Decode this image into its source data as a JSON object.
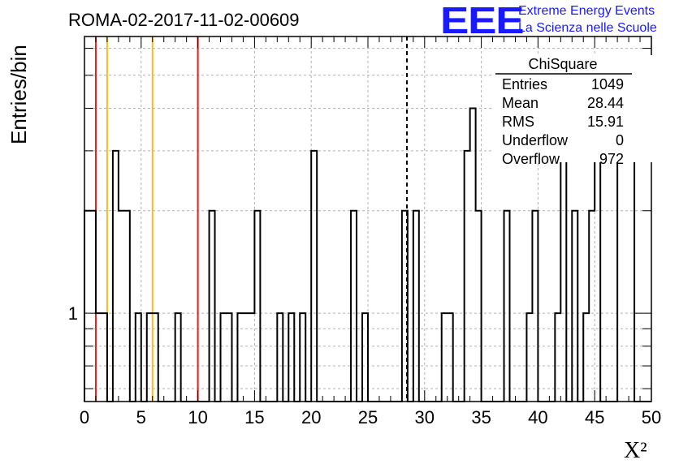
{
  "title": "ROMA-02-2017-11-02-00609",
  "logo": {
    "text": "EEE",
    "line1": "Extreme Energy Events",
    "line2": "La Scienza nelle Scuole",
    "color": "#1a1aff"
  },
  "stats_box": {
    "title": "ChiSquare",
    "rows": [
      {
        "label": "Entries",
        "value": "1049"
      },
      {
        "label": "Mean",
        "value": "28.44"
      },
      {
        "label": "RMS",
        "value": "15.91"
      },
      {
        "label": "Underflow",
        "value": "0"
      },
      {
        "label": "Overflow",
        "value": "972"
      }
    ]
  },
  "chart_data": {
    "type": "bar",
    "title": "ROMA-02-2017-11-02-00609",
    "xlabel": "X²",
    "ylabel": "Entries/bin",
    "xlim": [
      0,
      50
    ],
    "ylim": [
      0.55,
      6.5
    ],
    "yscale": "log",
    "xticks": [
      0,
      5,
      10,
      15,
      20,
      25,
      30,
      35,
      40,
      45,
      50
    ],
    "yticks": [
      1
    ],
    "grid": true,
    "bin_width": 0.5,
    "bins": [
      {
        "x": 0.0,
        "y": 2
      },
      {
        "x": 0.5,
        "y": 2
      },
      {
        "x": 1.0,
        "y": 1
      },
      {
        "x": 1.5,
        "y": 1
      },
      {
        "x": 2.0,
        "y": 0
      },
      {
        "x": 2.5,
        "y": 3
      },
      {
        "x": 3.0,
        "y": 2
      },
      {
        "x": 3.5,
        "y": 2
      },
      {
        "x": 4.0,
        "y": 0
      },
      {
        "x": 4.5,
        "y": 1
      },
      {
        "x": 5.0,
        "y": 0
      },
      {
        "x": 5.5,
        "y": 1
      },
      {
        "x": 6.0,
        "y": 1
      },
      {
        "x": 6.5,
        "y": 0
      },
      {
        "x": 7.0,
        "y": 0
      },
      {
        "x": 7.5,
        "y": 0
      },
      {
        "x": 8.0,
        "y": 1
      },
      {
        "x": 8.5,
        "y": 0
      },
      {
        "x": 9.0,
        "y": 0
      },
      {
        "x": 9.5,
        "y": 0
      },
      {
        "x": 10.0,
        "y": 0
      },
      {
        "x": 10.5,
        "y": 0
      },
      {
        "x": 11.0,
        "y": 2
      },
      {
        "x": 11.5,
        "y": 0
      },
      {
        "x": 12.0,
        "y": 1
      },
      {
        "x": 12.5,
        "y": 1
      },
      {
        "x": 13.0,
        "y": 0
      },
      {
        "x": 13.5,
        "y": 1
      },
      {
        "x": 14.0,
        "y": 1
      },
      {
        "x": 14.5,
        "y": 1
      },
      {
        "x": 15.0,
        "y": 2
      },
      {
        "x": 15.5,
        "y": 0
      },
      {
        "x": 16.0,
        "y": 0
      },
      {
        "x": 16.5,
        "y": 0
      },
      {
        "x": 17.0,
        "y": 1
      },
      {
        "x": 17.5,
        "y": 0
      },
      {
        "x": 18.0,
        "y": 1
      },
      {
        "x": 18.5,
        "y": 0
      },
      {
        "x": 19.0,
        "y": 1
      },
      {
        "x": 19.5,
        "y": 0
      },
      {
        "x": 20.0,
        "y": 3
      },
      {
        "x": 20.5,
        "y": 0
      },
      {
        "x": 21.0,
        "y": 0
      },
      {
        "x": 21.5,
        "y": 0
      },
      {
        "x": 22.0,
        "y": 0
      },
      {
        "x": 22.5,
        "y": 0
      },
      {
        "x": 23.0,
        "y": 0
      },
      {
        "x": 23.5,
        "y": 2
      },
      {
        "x": 24.0,
        "y": 0
      },
      {
        "x": 24.5,
        "y": 1
      },
      {
        "x": 25.0,
        "y": 0
      },
      {
        "x": 25.5,
        "y": 0
      },
      {
        "x": 26.0,
        "y": 0
      },
      {
        "x": 26.5,
        "y": 0
      },
      {
        "x": 27.0,
        "y": 0
      },
      {
        "x": 27.5,
        "y": 0
      },
      {
        "x": 28.0,
        "y": 2
      },
      {
        "x": 28.5,
        "y": 0
      },
      {
        "x": 29.0,
        "y": 2
      },
      {
        "x": 29.5,
        "y": 0
      },
      {
        "x": 30.0,
        "y": 0
      },
      {
        "x": 30.5,
        "y": 0
      },
      {
        "x": 31.0,
        "y": 0
      },
      {
        "x": 31.5,
        "y": 1
      },
      {
        "x": 32.0,
        "y": 1
      },
      {
        "x": 32.5,
        "y": 0
      },
      {
        "x": 33.0,
        "y": 0
      },
      {
        "x": 33.5,
        "y": 3
      },
      {
        "x": 34.0,
        "y": 4
      },
      {
        "x": 34.5,
        "y": 2
      },
      {
        "x": 35.0,
        "y": 0
      },
      {
        "x": 35.5,
        "y": 0
      },
      {
        "x": 36.0,
        "y": 0
      },
      {
        "x": 36.5,
        "y": 0
      },
      {
        "x": 37.0,
        "y": 2
      },
      {
        "x": 37.5,
        "y": 0
      },
      {
        "x": 38.0,
        "y": 0
      },
      {
        "x": 38.5,
        "y": 0
      },
      {
        "x": 39.0,
        "y": 1
      },
      {
        "x": 39.5,
        "y": 2
      },
      {
        "x": 40.0,
        "y": 0
      },
      {
        "x": 40.5,
        "y": 0
      },
      {
        "x": 41.0,
        "y": 0
      },
      {
        "x": 41.5,
        "y": 1
      },
      {
        "x": 42.0,
        "y": 4
      },
      {
        "x": 42.5,
        "y": 0
      },
      {
        "x": 43.0,
        "y": 2
      },
      {
        "x": 43.5,
        "y": 0
      },
      {
        "x": 44.0,
        "y": 1
      },
      {
        "x": 44.5,
        "y": 2
      },
      {
        "x": 45.0,
        "y": 4
      },
      {
        "x": 45.5,
        "y": 0
      },
      {
        "x": 46.0,
        "y": 0
      },
      {
        "x": 46.5,
        "y": 0
      },
      {
        "x": 47.0,
        "y": 3
      },
      {
        "x": 47.5,
        "y": 3
      },
      {
        "x": 48.0,
        "y": 3
      },
      {
        "x": 48.5,
        "y": 0
      },
      {
        "x": 49.0,
        "y": 0
      },
      {
        "x": 49.5,
        "y": 0
      }
    ],
    "reference_lines": [
      {
        "x": 1.0,
        "color": "#dd2222",
        "style": "solid"
      },
      {
        "x": 2.0,
        "color": "#f0c020",
        "style": "solid"
      },
      {
        "x": 6.0,
        "color": "#f0c020",
        "style": "solid"
      },
      {
        "x": 10.0,
        "color": "#dd2222",
        "style": "solid"
      },
      {
        "x": 28.44,
        "color": "#000000",
        "style": "dashed"
      }
    ]
  }
}
